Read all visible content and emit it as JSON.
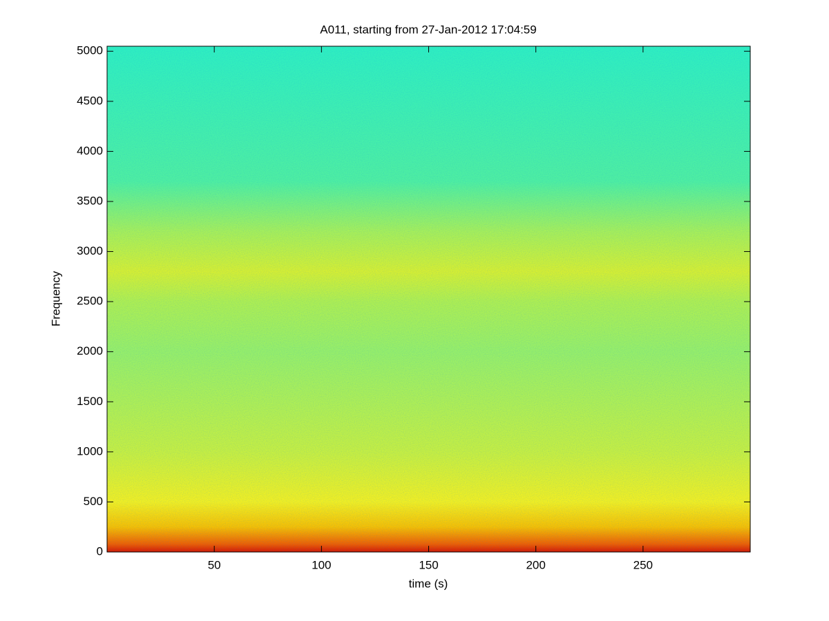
{
  "chart_data": {
    "type": "spectrogram",
    "title": "A011, starting from 27-Jan-2012 17:04:59",
    "x_label": "time (s)",
    "y_label": "Frequency",
    "xlim": [
      0,
      300
    ],
    "ylim": [
      0,
      5050
    ],
    "xticks": [
      50,
      100,
      150,
      200,
      250
    ],
    "yticks": [
      0,
      500,
      1000,
      1500,
      2000,
      2500,
      3000,
      3500,
      4000,
      4500,
      5000
    ],
    "colormap": "jet",
    "intensity_profile": [
      {
        "frequency": 0,
        "color": "#d81800"
      },
      {
        "frequency": 80,
        "color": "#f06000"
      },
      {
        "frequency": 250,
        "color": "#f8c000"
      },
      {
        "frequency": 500,
        "color": "#f4f020"
      },
      {
        "frequency": 1000,
        "color": "#c8f040"
      },
      {
        "frequency": 2000,
        "color": "#98f068"
      },
      {
        "frequency": 2500,
        "color": "#b0f050"
      },
      {
        "frequency": 2800,
        "color": "#d8f030"
      },
      {
        "frequency": 3200,
        "color": "#a8f058"
      },
      {
        "frequency": 3700,
        "color": "#50f0a0"
      },
      {
        "frequency": 5050,
        "color": "#30f0c0"
      }
    ]
  }
}
